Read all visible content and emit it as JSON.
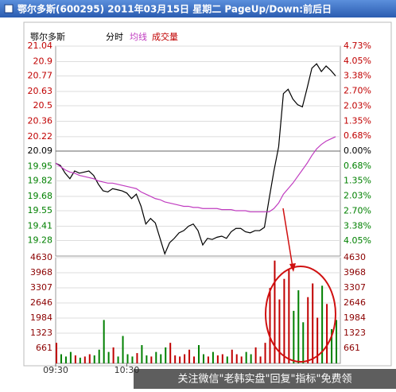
{
  "header": {
    "title": "鄂尔多斯(600295) 2011年03月15日 星期二 PageUp/Down:前后日"
  },
  "watermark": "关注微信\"老韩实盘\"回复\"指标\"免费领",
  "chart_data": [
    {
      "type": "line",
      "stock": "鄂尔多斯",
      "grid": true,
      "up_color": "#c00000",
      "down_color": "#008000",
      "flat_color": "#000000",
      "x": [
        0,
        4,
        8,
        12,
        16,
        20,
        24,
        28,
        32,
        36,
        40,
        44,
        48,
        52,
        56,
        60,
        64,
        68,
        72,
        76,
        80,
        84,
        88,
        92,
        96,
        100,
        104,
        108,
        112,
        116,
        120,
        124,
        128,
        132,
        136,
        140,
        144,
        148,
        152,
        156,
        160,
        164,
        168,
        172,
        176,
        180,
        184,
        188,
        192,
        196,
        200,
        204,
        208,
        212,
        216,
        220,
        224,
        228,
        232,
        236
      ],
      "xlim": [
        0,
        240
      ],
      "xticks": [
        {
          "value": 0,
          "label": "09:30"
        },
        {
          "value": 60,
          "label": "10:30"
        }
      ],
      "ylim": [
        19.14,
        21.04
      ],
      "yticks": [
        21.04,
        20.9,
        20.77,
        20.63,
        20.5,
        20.36,
        20.22,
        20.09,
        19.95,
        19.82,
        19.68,
        19.55,
        19.41,
        19.28
      ],
      "base": 20.09,
      "y2lim": [
        -4.73,
        4.73
      ],
      "y2ticks": [
        {
          "value": 4.73,
          "label": "4.73%"
        },
        {
          "value": 4.05,
          "label": "4.05%"
        },
        {
          "value": 3.38,
          "label": "3.38%"
        },
        {
          "value": 2.7,
          "label": "2.70%"
        },
        {
          "value": 2.03,
          "label": "2.03%"
        },
        {
          "value": 1.35,
          "label": "1.35%"
        },
        {
          "value": 0.68,
          "label": "0.68%"
        },
        {
          "value": 0,
          "label": "0.00%"
        },
        {
          "value": -0.68,
          "label": "0.68%"
        },
        {
          "value": -1.35,
          "label": "1.35%"
        },
        {
          "value": -2.03,
          "label": "2.03%"
        },
        {
          "value": -2.7,
          "label": "2.70%"
        },
        {
          "value": -3.38,
          "label": "3.38%"
        },
        {
          "value": -4.05,
          "label": "4.05%"
        }
      ],
      "series": [
        {
          "name": "分时",
          "color": "#000000",
          "values": [
            19.98,
            19.96,
            19.89,
            19.84,
            19.91,
            19.89,
            19.9,
            19.91,
            19.87,
            19.79,
            19.73,
            19.72,
            19.75,
            19.74,
            19.73,
            19.71,
            19.66,
            19.7,
            19.59,
            19.43,
            19.48,
            19.44,
            19.3,
            19.16,
            19.26,
            19.3,
            19.35,
            19.37,
            19.41,
            19.43,
            19.37,
            19.24,
            19.3,
            19.29,
            19.31,
            19.32,
            19.3,
            19.36,
            19.39,
            19.39,
            19.36,
            19.35,
            19.37,
            19.37,
            19.4,
            19.66,
            19.91,
            20.13,
            20.61,
            20.65,
            20.56,
            20.51,
            20.49,
            20.66,
            20.84,
            20.88,
            20.81,
            20.86,
            20.82,
            20.77
          ]
        },
        {
          "name": "均线",
          "color": "#c03cc0",
          "values": [
            19.98,
            19.95,
            19.92,
            19.9,
            19.89,
            19.87,
            19.86,
            19.85,
            19.84,
            19.82,
            19.81,
            19.8,
            19.8,
            19.79,
            19.78,
            19.77,
            19.76,
            19.75,
            19.72,
            19.7,
            19.68,
            19.66,
            19.65,
            19.63,
            19.62,
            19.61,
            19.6,
            19.59,
            19.59,
            19.58,
            19.58,
            19.57,
            19.57,
            19.57,
            19.57,
            19.56,
            19.56,
            19.56,
            19.55,
            19.55,
            19.55,
            19.54,
            19.54,
            19.54,
            19.54,
            19.54,
            19.57,
            19.62,
            19.7,
            19.75,
            19.8,
            19.86,
            19.92,
            19.98,
            20.05,
            20.11,
            20.15,
            20.18,
            20.2,
            20.22
          ]
        }
      ]
    },
    {
      "type": "bar",
      "name": "成交量",
      "color": "#c00000",
      "values": [
        900,
        400,
        300,
        500,
        350,
        250,
        300,
        400,
        350,
        600,
        1900,
        500,
        700,
        300,
        1200,
        400,
        300,
        450,
        800,
        350,
        300,
        500,
        400,
        700,
        900,
        350,
        300,
        400,
        600,
        300,
        800,
        400,
        300,
        500,
        350,
        400,
        300,
        600,
        400,
        300,
        500,
        400,
        700,
        300,
        900,
        3300,
        4500,
        2800,
        3700,
        4100,
        2300,
        3200,
        1800,
        2900,
        3500,
        2000,
        3400,
        2600,
        1500,
        1900
      ],
      "ylim": [
        0,
        4630
      ],
      "yticks": [
        4630,
        3968,
        3307,
        2646,
        1984,
        1323,
        661
      ]
    }
  ]
}
